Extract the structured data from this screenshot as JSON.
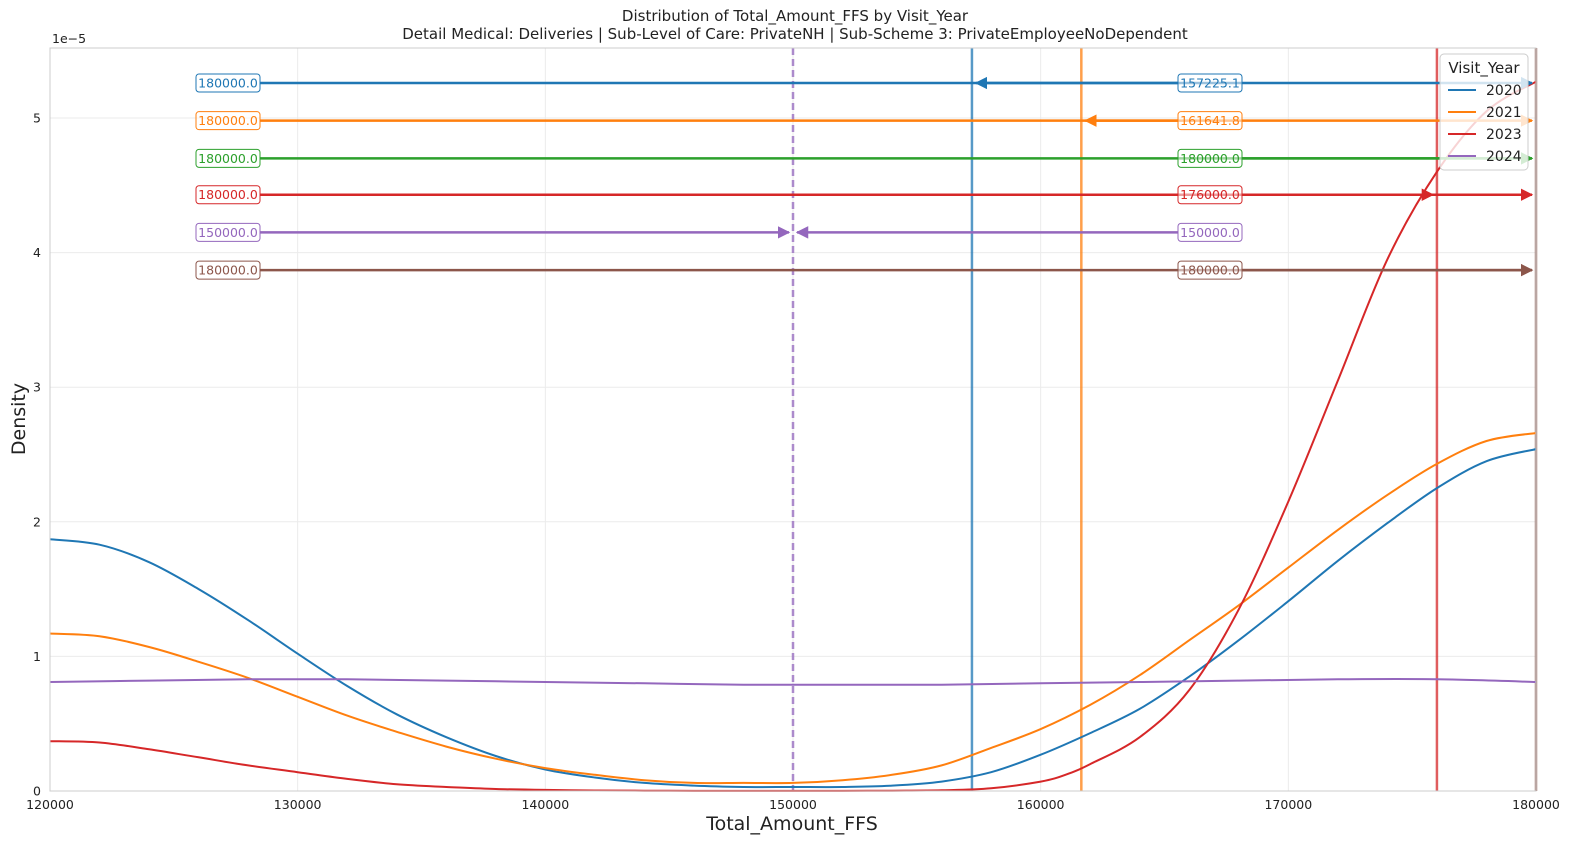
{
  "chart_data": {
    "type": "line",
    "title": "Distribution of Total_Amount_FFS by Visit_Year",
    "subtitle": "Detail Medical: Deliveries | Sub-Level of Care: PrivateNH | Sub-Scheme 3: PrivateEmployeeNoDependent",
    "xlabel": "Total_Amount_FFS",
    "ylabel": "Density",
    "y_scale_label": "1e−5",
    "xlim": [
      120000,
      180000
    ],
    "ylim": [
      0,
      5.52
    ],
    "x_ticks": [
      120000,
      130000,
      140000,
      150000,
      160000,
      170000,
      180000
    ],
    "x_tick_labels": [
      "120000",
      "130000",
      "140000",
      "150000",
      "160000",
      "170000",
      "180000"
    ],
    "y_ticks": [
      0,
      1,
      2,
      3,
      4,
      5
    ],
    "y_tick_labels": [
      "0",
      "1",
      "2",
      "3",
      "4",
      "5"
    ],
    "grid": true,
    "legend": {
      "title": "Visit_Year",
      "position": "top-right",
      "entries": [
        {
          "label": "2020",
          "color": "#1f77b4"
        },
        {
          "label": "2021",
          "color": "#ff7f0e"
        },
        {
          "label": "2023",
          "color": "#d62728"
        },
        {
          "label": "2024",
          "color": "#9467bd"
        }
      ]
    },
    "series": [
      {
        "name": "2020",
        "color": "#1f77b4",
        "x": [
          120000,
          122000,
          124000,
          126000,
          128000,
          130000,
          132000,
          134000,
          136000,
          138000,
          140000,
          142000,
          144000,
          146000,
          148000,
          150000,
          152000,
          154000,
          156000,
          158000,
          160000,
          162000,
          164000,
          166000,
          168000,
          170000,
          172000,
          174000,
          176000,
          178000,
          180000
        ],
        "y": [
          1.87,
          1.83,
          1.7,
          1.5,
          1.27,
          1.02,
          0.78,
          0.57,
          0.4,
          0.26,
          0.16,
          0.1,
          0.06,
          0.04,
          0.03,
          0.03,
          0.03,
          0.04,
          0.07,
          0.14,
          0.27,
          0.43,
          0.61,
          0.85,
          1.12,
          1.41,
          1.71,
          1.99,
          2.25,
          2.45,
          2.54
        ]
      },
      {
        "name": "2021",
        "color": "#ff7f0e",
        "x": [
          120000,
          122000,
          124000,
          126000,
          128000,
          130000,
          132000,
          134000,
          136000,
          138000,
          140000,
          142000,
          144000,
          146000,
          148000,
          150000,
          152000,
          154000,
          156000,
          158000,
          160000,
          162000,
          164000,
          166000,
          168000,
          170000,
          172000,
          174000,
          176000,
          178000,
          180000
        ],
        "y": [
          1.17,
          1.15,
          1.07,
          0.96,
          0.84,
          0.7,
          0.56,
          0.44,
          0.33,
          0.24,
          0.17,
          0.12,
          0.08,
          0.06,
          0.06,
          0.06,
          0.08,
          0.12,
          0.19,
          0.32,
          0.46,
          0.64,
          0.86,
          1.12,
          1.38,
          1.66,
          1.94,
          2.2,
          2.43,
          2.6,
          2.66
        ]
      },
      {
        "name": "2023",
        "color": "#d62728",
        "x": [
          120000,
          122000,
          124000,
          126000,
          128000,
          130000,
          132000,
          134000,
          136000,
          138000,
          140000,
          142000,
          144000,
          146000,
          148000,
          150000,
          152000,
          154000,
          156000,
          158000,
          160000,
          161000,
          162000,
          164000,
          166000,
          168000,
          170000,
          172000,
          174000,
          176000,
          178000,
          180000
        ],
        "y": [
          0.37,
          0.36,
          0.31,
          0.25,
          0.19,
          0.14,
          0.09,
          0.05,
          0.03,
          0.015,
          0.008,
          0.004,
          0.002,
          0.001,
          0.001,
          0.001,
          0.001,
          0.002,
          0.005,
          0.02,
          0.07,
          0.12,
          0.2,
          0.4,
          0.75,
          1.35,
          2.15,
          3.05,
          3.95,
          4.6,
          5.05,
          5.27
        ]
      },
      {
        "name": "2024",
        "color": "#9467bd",
        "x": [
          120000,
          124000,
          128000,
          132000,
          136000,
          140000,
          144000,
          148000,
          150000,
          152000,
          156000,
          160000,
          164000,
          168000,
          172000,
          176000,
          180000
        ],
        "y": [
          0.81,
          0.82,
          0.83,
          0.83,
          0.82,
          0.81,
          0.8,
          0.79,
          0.79,
          0.79,
          0.79,
          0.8,
          0.81,
          0.82,
          0.83,
          0.83,
          0.81
        ]
      }
    ],
    "vertical_lines": [
      {
        "x": 157225.1,
        "color": "#1f77b4",
        "style": "solid"
      },
      {
        "x": 161641.8,
        "color": "#ff7f0e",
        "style": "solid"
      },
      {
        "x": 176000.0,
        "color": "#d62728",
        "style": "solid"
      },
      {
        "x": 150000.0,
        "color": "#9467bd",
        "style": "dashed"
      },
      {
        "x": 180000.0,
        "color": "#8c564b",
        "style": "solid"
      }
    ],
    "annotations": [
      {
        "y": 5.26,
        "color": "#1f77b4",
        "left_label": "180000.0",
        "right_label": "157225.1",
        "left_arrow_to": 180000,
        "right_arrow_to": 157225.1
      },
      {
        "y": 4.98,
        "color": "#ff7f0e",
        "left_label": "180000.0",
        "right_label": "161641.8",
        "left_arrow_to": 180000,
        "right_arrow_to": 161641.8
      },
      {
        "y": 4.7,
        "color": "#2ca02c",
        "left_label": "180000.0",
        "right_label": "180000.0",
        "left_arrow_to": 180000,
        "right_arrow_to": 180000
      },
      {
        "y": 4.43,
        "color": "#d62728",
        "left_label": "180000.0",
        "right_label": "176000.0",
        "left_arrow_to": 180000,
        "right_arrow_to": 176000
      },
      {
        "y": 4.15,
        "color": "#9467bd",
        "left_label": "150000.0",
        "right_label": "150000.0",
        "left_arrow_to": 150000,
        "right_arrow_to": 150000
      },
      {
        "y": 3.87,
        "color": "#8c564b",
        "left_label": "180000.0",
        "right_label": "180000.0",
        "left_arrow_to": 180000,
        "right_arrow_to": 180000
      }
    ]
  }
}
